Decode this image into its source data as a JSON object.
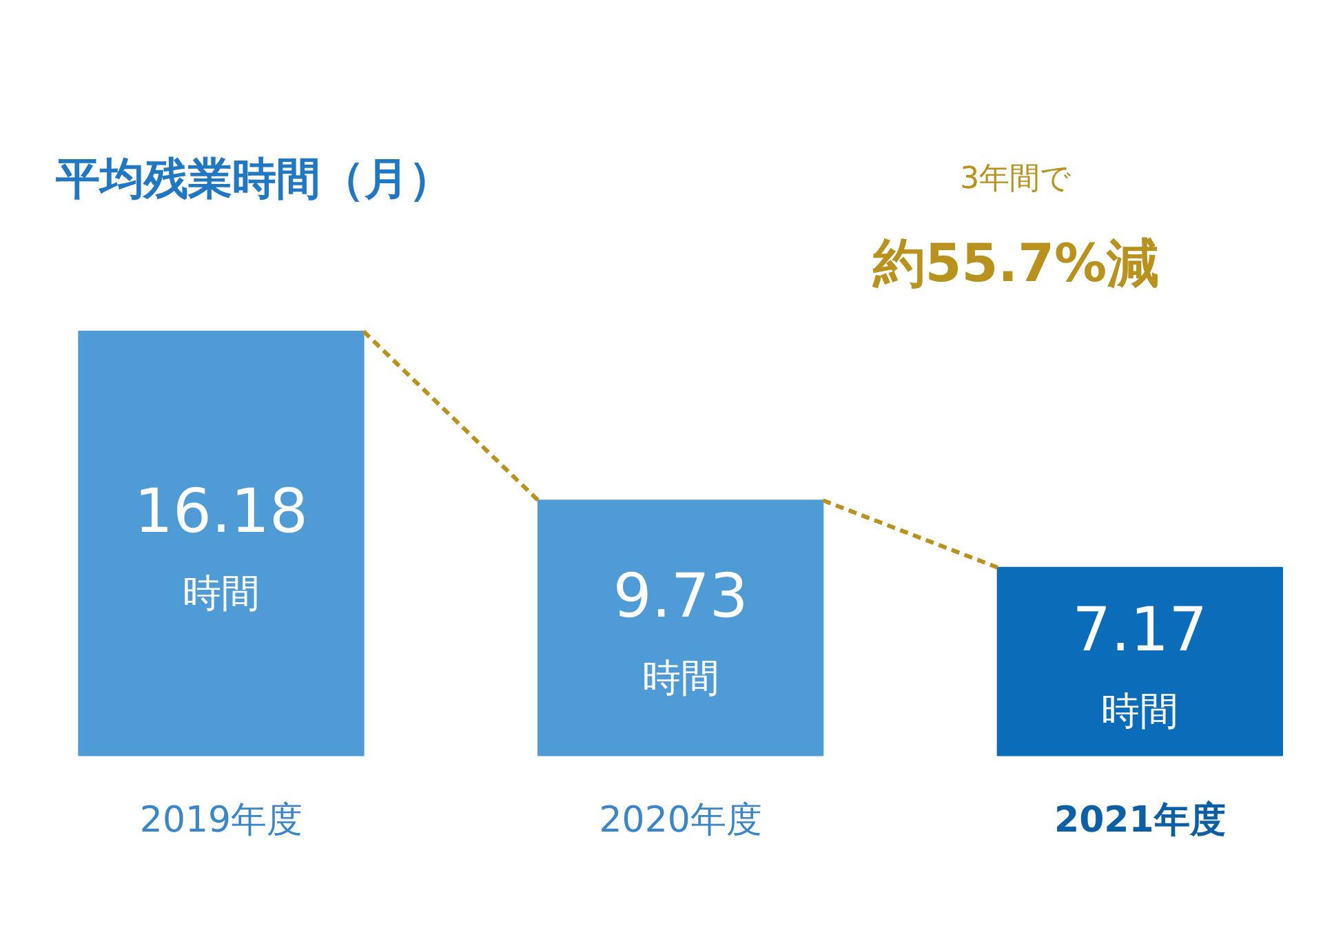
{
  "chart_data": {
    "type": "bar",
    "title": "平均残業時間（月）",
    "categories": [
      "2019年度",
      "2020年度",
      "2021年度"
    ],
    "values": [
      16.18,
      9.73,
      7.17
    ],
    "colors": [
      "#4f9bd5",
      "#4f9bd5",
      "#0b6cb9"
    ],
    "value_labels": [
      "16.18\n時間",
      "9.73\n時間",
      "7.17\n時間"
    ],
    "annotations": [
      "3年間で",
      "約55.7%減"
    ]
  }
}
